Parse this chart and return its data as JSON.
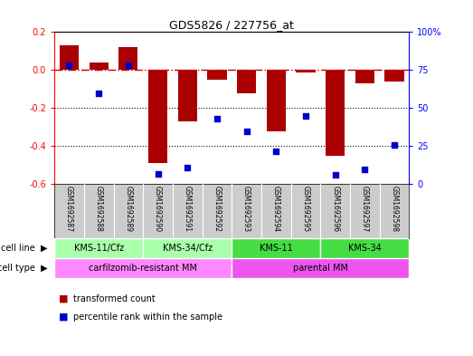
{
  "title": "GDS5826 / 227756_at",
  "samples": [
    "GSM1692587",
    "GSM1692588",
    "GSM1692589",
    "GSM1692590",
    "GSM1692591",
    "GSM1692592",
    "GSM1692593",
    "GSM1692594",
    "GSM1692595",
    "GSM1692596",
    "GSM1692597",
    "GSM1692598"
  ],
  "transformed_count": [
    0.13,
    0.04,
    0.12,
    -0.49,
    -0.27,
    -0.05,
    -0.12,
    -0.32,
    -0.01,
    -0.45,
    -0.07,
    -0.06
  ],
  "percentile_rank": [
    78,
    60,
    78,
    7,
    11,
    43,
    35,
    22,
    45,
    6,
    10,
    26
  ],
  "cell_lines": [
    {
      "label": "KMS-11/Cfz",
      "start": 0,
      "end": 3,
      "color": "#AAFFAA"
    },
    {
      "label": "KMS-34/Cfz",
      "start": 3,
      "end": 6,
      "color": "#AAFFAA"
    },
    {
      "label": "KMS-11",
      "start": 6,
      "end": 9,
      "color": "#44DD44"
    },
    {
      "label": "KMS-34",
      "start": 9,
      "end": 12,
      "color": "#44DD44"
    }
  ],
  "cell_types": [
    {
      "label": "carfilzomib-resistant MM",
      "start": 0,
      "end": 6,
      "color": "#FF88FF"
    },
    {
      "label": "parental MM",
      "start": 6,
      "end": 12,
      "color": "#EE55EE"
    }
  ],
  "ylim": [
    -0.6,
    0.2
  ],
  "yticks": [
    0.2,
    0.0,
    -0.2,
    -0.4,
    -0.6
  ],
  "y2ticks": [
    100,
    75,
    50,
    25,
    0
  ],
  "bar_color": "#AA0000",
  "dot_color": "#0000CC",
  "hline_color": "#CC0000",
  "grid_color": "#000000",
  "sample_bg": "#CCCCCC",
  "legend_items": [
    {
      "label": "transformed count",
      "color": "#AA0000"
    },
    {
      "label": "percentile rank within the sample",
      "color": "#0000CC"
    }
  ]
}
